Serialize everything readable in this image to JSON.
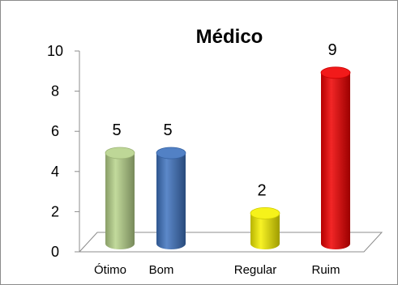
{
  "chart_data": {
    "type": "bar",
    "title": "Médico",
    "categories": [
      "Ótimo",
      "Bom",
      "Regular",
      "Ruim"
    ],
    "values": [
      5,
      5,
      2,
      9
    ],
    "colors": [
      "#b7d38b",
      "#3f73bf",
      "#f5f000",
      "#f00000"
    ],
    "ylim": [
      0,
      10
    ],
    "yticks": [
      0,
      2,
      4,
      6,
      8,
      10
    ],
    "xlabel": "",
    "ylabel": "",
    "grid": false,
    "legend": "none",
    "style": "3d-cylinder"
  }
}
